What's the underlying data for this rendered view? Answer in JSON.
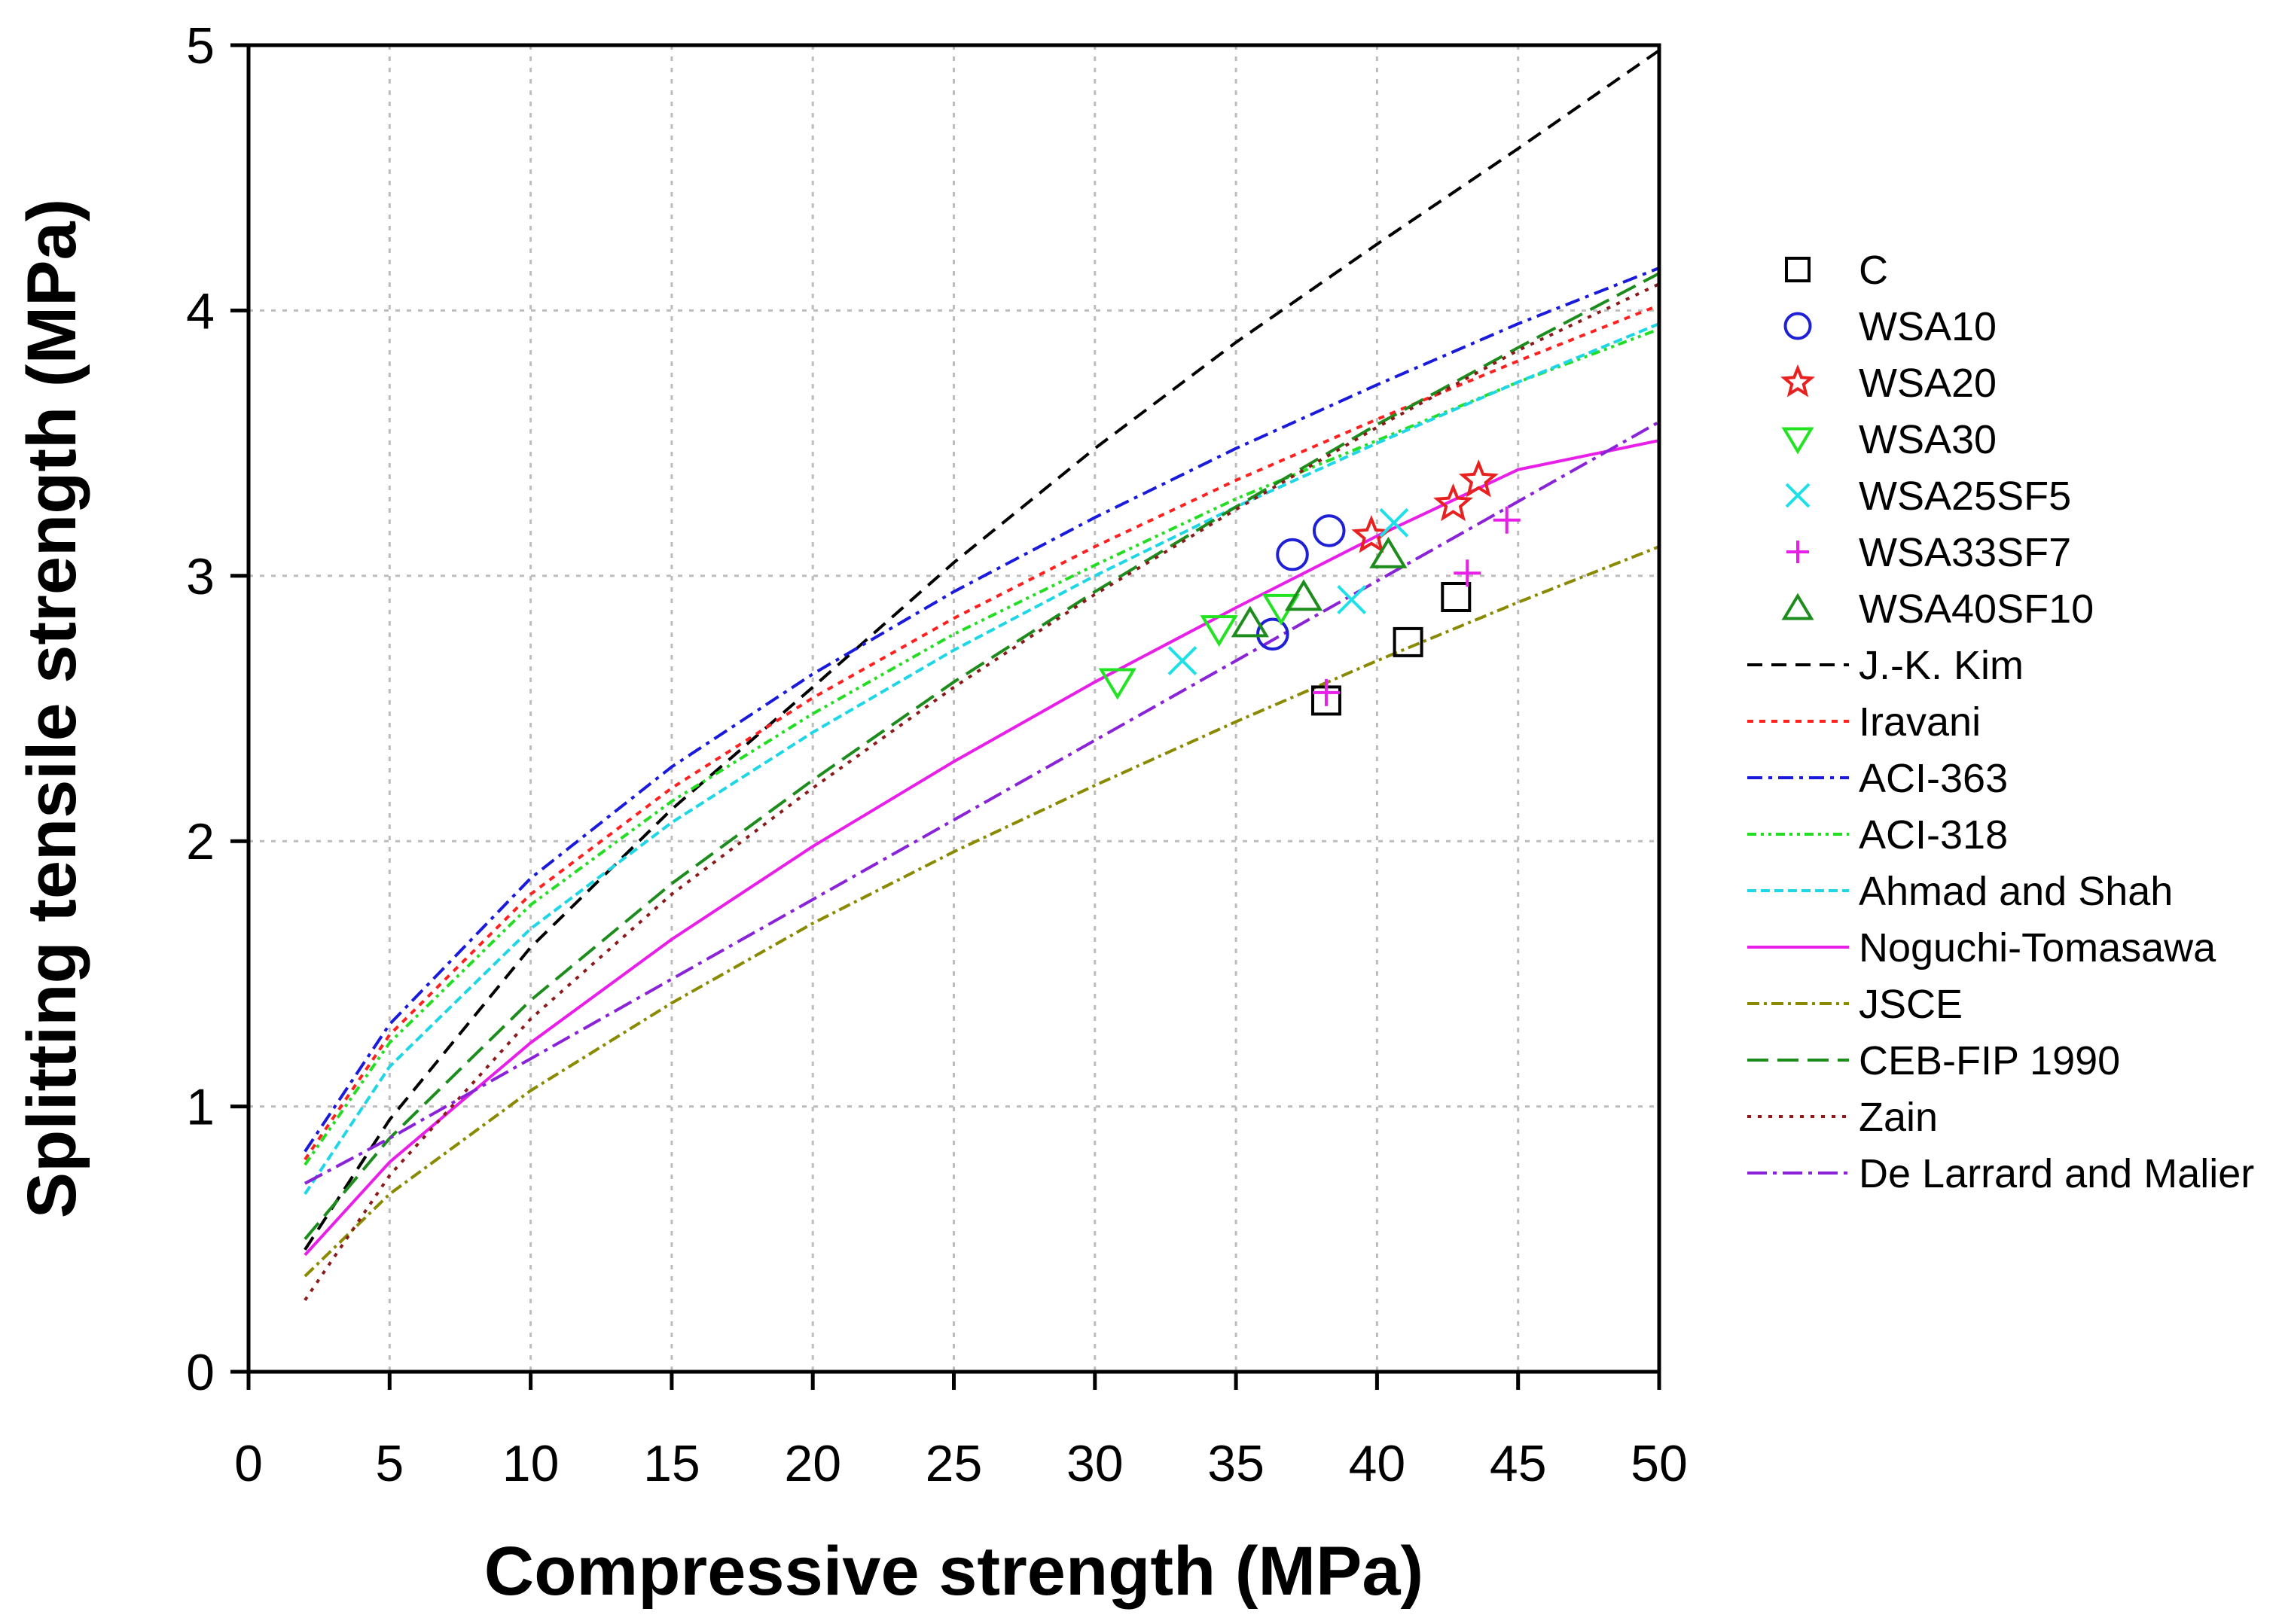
{
  "chart_data": {
    "type": "scatter",
    "title": "",
    "xlabel": "Compressive strength (MPa)",
    "ylabel": "Splitting tensile strength (MPa)",
    "xlim": [
      0,
      50
    ],
    "ylim": [
      0,
      5
    ],
    "x_ticks": [
      "0",
      "5",
      "10",
      "15",
      "20",
      "25",
      "30",
      "35",
      "40",
      "45",
      "50"
    ],
    "y_ticks": [
      "0",
      "1",
      "2",
      "3",
      "4",
      "5"
    ],
    "grid": true,
    "legend_position": "right",
    "series": [
      {
        "name": "C",
        "kind": "points",
        "marker": "square",
        "color": "#000000",
        "points": [
          [
            38.2,
            2.53
          ],
          [
            41.1,
            2.75
          ],
          [
            42.8,
            2.92
          ]
        ]
      },
      {
        "name": "WSA10",
        "kind": "points",
        "marker": "circle",
        "color": "#1f1fd6",
        "points": [
          [
            36.3,
            2.78
          ],
          [
            37.0,
            3.08
          ],
          [
            38.3,
            3.17
          ]
        ]
      },
      {
        "name": "WSA20",
        "kind": "points",
        "marker": "star",
        "color": "#e8201f",
        "points": [
          [
            39.8,
            3.15
          ],
          [
            42.7,
            3.27
          ],
          [
            43.6,
            3.36
          ]
        ]
      },
      {
        "name": "WSA30",
        "kind": "points",
        "marker": "triangle-down",
        "color": "#21e321",
        "points": [
          [
            30.8,
            2.6
          ],
          [
            34.4,
            2.8
          ],
          [
            36.6,
            2.88
          ]
        ]
      },
      {
        "name": "WSA25SF5",
        "kind": "points",
        "marker": "x",
        "color": "#1ee0e8",
        "points": [
          [
            33.1,
            2.68
          ],
          [
            39.1,
            2.91
          ],
          [
            40.6,
            3.2
          ]
        ]
      },
      {
        "name": "WSA33SF7",
        "kind": "points",
        "marker": "plus",
        "color": "#e81fe8",
        "points": [
          [
            38.2,
            2.56
          ],
          [
            43.2,
            3.01
          ],
          [
            44.6,
            3.21
          ]
        ]
      },
      {
        "name": "WSA40SF10",
        "kind": "points",
        "marker": "triangle-up",
        "color": "#1c8c1c",
        "points": [
          [
            35.5,
            2.82
          ],
          [
            37.4,
            2.92
          ],
          [
            40.4,
            3.08
          ]
        ]
      },
      {
        "name": "J.-K. Kim",
        "kind": "curve",
        "color": "#000000",
        "dash": "20,12",
        "x": [
          2,
          5,
          10,
          15,
          20,
          25,
          30,
          35,
          40,
          45,
          50
        ],
        "y": [
          0.46,
          0.95,
          1.6,
          2.12,
          2.58,
          3.05,
          3.48,
          3.88,
          4.25,
          4.61,
          4.98
        ]
      },
      {
        "name": "Iravani",
        "kind": "curve",
        "color": "#ff2020",
        "dash": "8,8",
        "x": [
          2,
          5,
          10,
          15,
          20,
          25,
          30,
          35,
          40,
          45,
          50
        ],
        "y": [
          0.8,
          1.27,
          1.8,
          2.2,
          2.54,
          2.84,
          3.11,
          3.36,
          3.59,
          3.81,
          4.02
        ]
      },
      {
        "name": "ACI-363",
        "kind": "curve",
        "color": "#1a1adc",
        "dash": "20,8,5,8",
        "x": [
          2,
          5,
          10,
          15,
          20,
          25,
          30,
          35,
          40,
          45,
          50
        ],
        "y": [
          0.83,
          1.31,
          1.86,
          2.28,
          2.63,
          2.94,
          3.22,
          3.48,
          3.72,
          3.95,
          4.16
        ]
      },
      {
        "name": "ACI-318",
        "kind": "curve",
        "color": "#22dd22",
        "dash": "12,6,4,6,4,6",
        "x": [
          2,
          5,
          10,
          15,
          20,
          25,
          30,
          35,
          40,
          45,
          50
        ],
        "y": [
          0.78,
          1.24,
          1.76,
          2.15,
          2.48,
          2.78,
          3.04,
          3.29,
          3.51,
          3.73,
          3.93
        ]
      },
      {
        "name": "Ahmad and Shah",
        "kind": "curve",
        "color": "#1ed6e6",
        "dash": "12,6",
        "x": [
          2,
          5,
          10,
          15,
          20,
          25,
          30,
          35,
          40,
          45,
          50
        ],
        "y": [
          0.67,
          1.15,
          1.67,
          2.07,
          2.41,
          2.72,
          3.0,
          3.26,
          3.5,
          3.73,
          3.95
        ]
      },
      {
        "name": "Noguchi-Tomasawa",
        "kind": "curve",
        "color": "#e81fe8",
        "dash": "",
        "x": [
          2,
          5,
          10,
          15,
          20,
          25,
          30,
          35,
          40,
          45,
          50
        ],
        "y": [
          0.44,
          0.79,
          1.24,
          1.63,
          1.98,
          2.3,
          2.6,
          2.88,
          3.15,
          3.4,
          3.51
        ]
      },
      {
        "name": "JSCE",
        "kind": "curve",
        "color": "#8a8a00",
        "dash": "16,6,4,6",
        "x": [
          2,
          5,
          10,
          15,
          20,
          25,
          30,
          35,
          40,
          45,
          50
        ],
        "y": [
          0.36,
          0.67,
          1.06,
          1.39,
          1.69,
          1.96,
          2.21,
          2.45,
          2.68,
          2.9,
          3.11
        ]
      },
      {
        "name": "CEB-FIP 1990",
        "kind": "curve",
        "color": "#1c8c1c",
        "dash": "28,12",
        "x": [
          2,
          5,
          10,
          15,
          20,
          25,
          30,
          35,
          40,
          45,
          50
        ],
        "y": [
          0.5,
          0.88,
          1.4,
          1.84,
          2.23,
          2.6,
          2.94,
          3.26,
          3.57,
          3.86,
          4.14
        ]
      },
      {
        "name": "Zain",
        "kind": "curve",
        "color": "#8b1a1a",
        "dash": "5,9",
        "x": [
          2,
          5,
          10,
          15,
          20,
          25,
          30,
          35,
          40,
          45,
          50
        ],
        "y": [
          0.27,
          0.74,
          1.33,
          1.8,
          2.2,
          2.58,
          2.93,
          3.25,
          3.56,
          3.85,
          4.1
        ]
      },
      {
        "name": "De Larrard and Malier",
        "kind": "curve",
        "color": "#8a22d8",
        "dash": "26,8,5,8",
        "x": [
          2,
          5,
          10,
          15,
          20,
          25,
          30,
          35,
          40,
          45,
          50
        ],
        "y": [
          0.71,
          0.88,
          1.18,
          1.48,
          1.78,
          2.08,
          2.38,
          2.68,
          2.98,
          3.28,
          3.58
        ]
      }
    ]
  }
}
